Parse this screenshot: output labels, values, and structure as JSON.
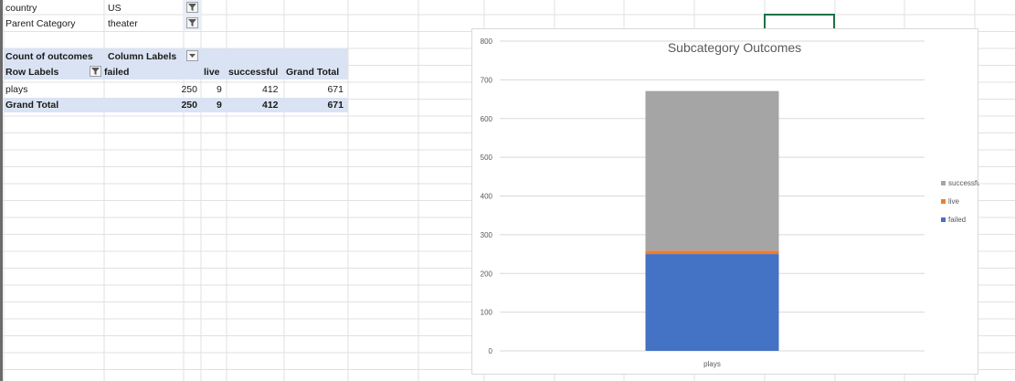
{
  "filters": [
    {
      "label": "country",
      "value": "US"
    },
    {
      "label": "Parent Category",
      "value": "theater"
    }
  ],
  "pivot": {
    "corner_label": "Count of outcomes",
    "column_labels": "Column Labels",
    "row_labels": "Row Labels",
    "headers": [
      "failed",
      "live",
      "successful",
      "Grand Total"
    ],
    "rows": [
      {
        "label": "plays",
        "values": [
          "250",
          "9",
          "412",
          "671"
        ]
      }
    ],
    "grand_total": {
      "label": "Grand Total",
      "values": [
        "250",
        "9",
        "412",
        "671"
      ]
    }
  },
  "colors": {
    "failed": "#4472c4",
    "live": "#ed7d31",
    "successful": "#a5a5a5",
    "header_band": "#dae3f3",
    "selection": "#1e7145"
  },
  "chart_data": {
    "type": "bar",
    "stacked": true,
    "title": "Subcategory Outcomes",
    "categories": [
      "plays"
    ],
    "series": [
      {
        "name": "failed",
        "values": [
          250
        ]
      },
      {
        "name": "live",
        "values": [
          9
        ]
      },
      {
        "name": "successful",
        "values": [
          412
        ]
      }
    ],
    "ylim": [
      0,
      800
    ],
    "yticks": [
      "0",
      "100",
      "200",
      "300",
      "400",
      "500",
      "600",
      "700",
      "800"
    ],
    "grid": true,
    "legend": "right",
    "legend_order": [
      "successful",
      "live",
      "failed"
    ]
  }
}
